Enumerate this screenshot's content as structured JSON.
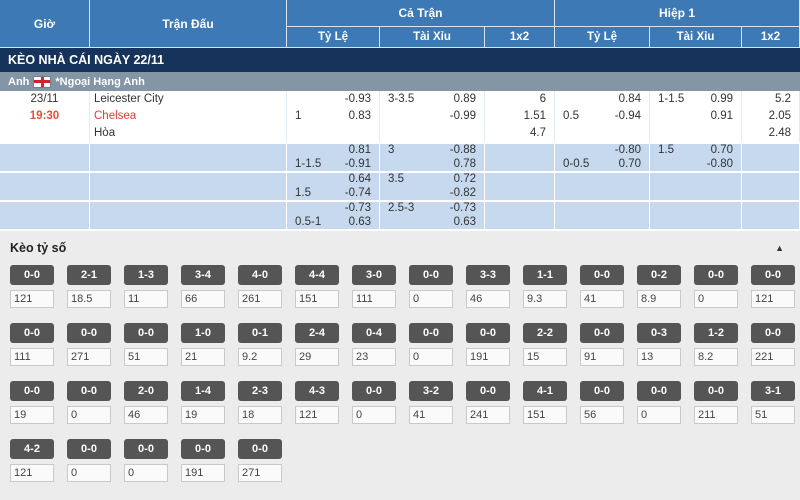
{
  "colors": {
    "header_blue": "#3d79b4",
    "banner_navy": "#16335c",
    "league_gray": "#8496a6",
    "row_blue": "#c6d9ee",
    "accent_red": "#e2503c",
    "chip_gray": "#555555"
  },
  "header": {
    "time": "Giờ",
    "match": "Trận Đấu",
    "full_time": "Cả Trận",
    "first_half": "Hiệp 1",
    "sub": {
      "handicap": "Tỷ Lệ",
      "over_under": "Tài Xỉu",
      "one_x_two": "1x2"
    }
  },
  "banner": "KÈO NHÀ CÁI NGÀY 22/11",
  "league": {
    "country": "Anh",
    "name": "*Ngoại Hạng Anh",
    "flag_icon": "england-flag"
  },
  "match": {
    "date": "23/11",
    "time": "19:30",
    "home": "Leicester City",
    "away": "Chelsea",
    "draw": "Hòa"
  },
  "odds_rows": [
    {
      "ft_hdp": [
        {
          "l": "",
          "r": "-0.93"
        },
        {
          "l": "1",
          "r": "0.83"
        }
      ],
      "ft_ou": [
        {
          "l": "3-3.5",
          "r": "0.89"
        },
        {
          "l": "",
          "r": "-0.99"
        }
      ],
      "ft_1x2": [
        {
          "l": "",
          "r": "6"
        },
        {
          "l": "",
          "r": "1.51"
        },
        {
          "l": "",
          "r": "4.7"
        }
      ],
      "h1_hdp": [
        {
          "l": "",
          "r": "0.84"
        },
        {
          "l": "0.5",
          "r": "-0.94"
        }
      ],
      "h1_ou": [
        {
          "l": "1-1.5",
          "r": "0.99"
        },
        {
          "l": "",
          "r": "0.91"
        }
      ],
      "h1_1x2": [
        {
          "l": "",
          "r": "5.2"
        },
        {
          "l": "",
          "r": "2.05"
        },
        {
          "l": "",
          "r": "2.48"
        }
      ]
    },
    {
      "ft_hdp": [
        {
          "l": "",
          "r": "0.81"
        },
        {
          "l": "1-1.5",
          "r": "-0.91"
        }
      ],
      "ft_ou": [
        {
          "l": "3",
          "r": "-0.88"
        },
        {
          "l": "",
          "r": "0.78"
        }
      ],
      "ft_1x2": [],
      "h1_hdp": [
        {
          "l": "",
          "r": "-0.80"
        },
        {
          "l": "0-0.5",
          "r": "0.70"
        }
      ],
      "h1_ou": [
        {
          "l": "1.5",
          "r": "0.70"
        },
        {
          "l": "",
          "r": "-0.80"
        }
      ],
      "h1_1x2": []
    },
    {
      "ft_hdp": [
        {
          "l": "",
          "r": "0.64"
        },
        {
          "l": "1.5",
          "r": "-0.74"
        }
      ],
      "ft_ou": [
        {
          "l": "3.5",
          "r": "0.72"
        },
        {
          "l": "",
          "r": "-0.82"
        }
      ],
      "ft_1x2": [],
      "h1_hdp": [],
      "h1_ou": [],
      "h1_1x2": []
    },
    {
      "ft_hdp": [
        {
          "l": "",
          "r": "-0.73"
        },
        {
          "l": "0.5-1",
          "r": "0.63"
        }
      ],
      "ft_ou": [
        {
          "l": "2.5-3",
          "r": "-0.73"
        },
        {
          "l": "",
          "r": "0.63"
        }
      ],
      "ft_1x2": [],
      "h1_hdp": [],
      "h1_ou": [],
      "h1_1x2": []
    }
  ],
  "score_section": {
    "title": "Kèo tỷ số",
    "collapse_icon": "▲",
    "rows": [
      [
        {
          "s": "0-0",
          "o": "121"
        },
        {
          "s": "2-1",
          "o": "18.5"
        },
        {
          "s": "1-3",
          "o": "11"
        },
        {
          "s": "3-4",
          "o": "66"
        },
        {
          "s": "4-0",
          "o": "261"
        },
        {
          "s": "4-4",
          "o": "151"
        },
        {
          "s": "3-0",
          "o": "111"
        },
        {
          "s": "0-0",
          "o": "0"
        },
        {
          "s": "3-3",
          "o": "46"
        },
        {
          "s": "1-1",
          "o": "9.3"
        },
        {
          "s": "0-0",
          "o": "41"
        },
        {
          "s": "0-2",
          "o": "8.9"
        },
        {
          "s": "0-0",
          "o": "0"
        },
        {
          "s": "0-0",
          "o": "121"
        }
      ],
      [
        {
          "s": "0-0",
          "o": "111"
        },
        {
          "s": "0-0",
          "o": "271"
        },
        {
          "s": "0-0",
          "o": "51"
        },
        {
          "s": "1-0",
          "o": "21"
        },
        {
          "s": "0-1",
          "o": "9.2"
        },
        {
          "s": "2-4",
          "o": "29"
        },
        {
          "s": "0-4",
          "o": "23"
        },
        {
          "s": "0-0",
          "o": "0"
        },
        {
          "s": "0-0",
          "o": "191"
        },
        {
          "s": "2-2",
          "o": "15"
        },
        {
          "s": "0-0",
          "o": "91"
        },
        {
          "s": "0-3",
          "o": "13"
        },
        {
          "s": "1-2",
          "o": "8.2"
        },
        {
          "s": "0-0",
          "o": "221"
        }
      ],
      [
        {
          "s": "0-0",
          "o": "19"
        },
        {
          "s": "0-0",
          "o": "0"
        },
        {
          "s": "2-0",
          "o": "46"
        },
        {
          "s": "1-4",
          "o": "19"
        },
        {
          "s": "2-3",
          "o": "18"
        },
        {
          "s": "4-3",
          "o": "121"
        },
        {
          "s": "0-0",
          "o": "0"
        },
        {
          "s": "3-2",
          "o": "41"
        },
        {
          "s": "0-0",
          "o": "241"
        },
        {
          "s": "4-1",
          "o": "151"
        },
        {
          "s": "0-0",
          "o": "56"
        },
        {
          "s": "0-0",
          "o": "0"
        },
        {
          "s": "0-0",
          "o": "211"
        },
        {
          "s": "3-1",
          "o": "51"
        }
      ],
      [
        {
          "s": "4-2",
          "o": "121"
        },
        {
          "s": "0-0",
          "o": "0"
        },
        {
          "s": "0-0",
          "o": "0"
        },
        {
          "s": "0-0",
          "o": "191"
        },
        {
          "s": "0-0",
          "o": "271"
        }
      ]
    ]
  }
}
